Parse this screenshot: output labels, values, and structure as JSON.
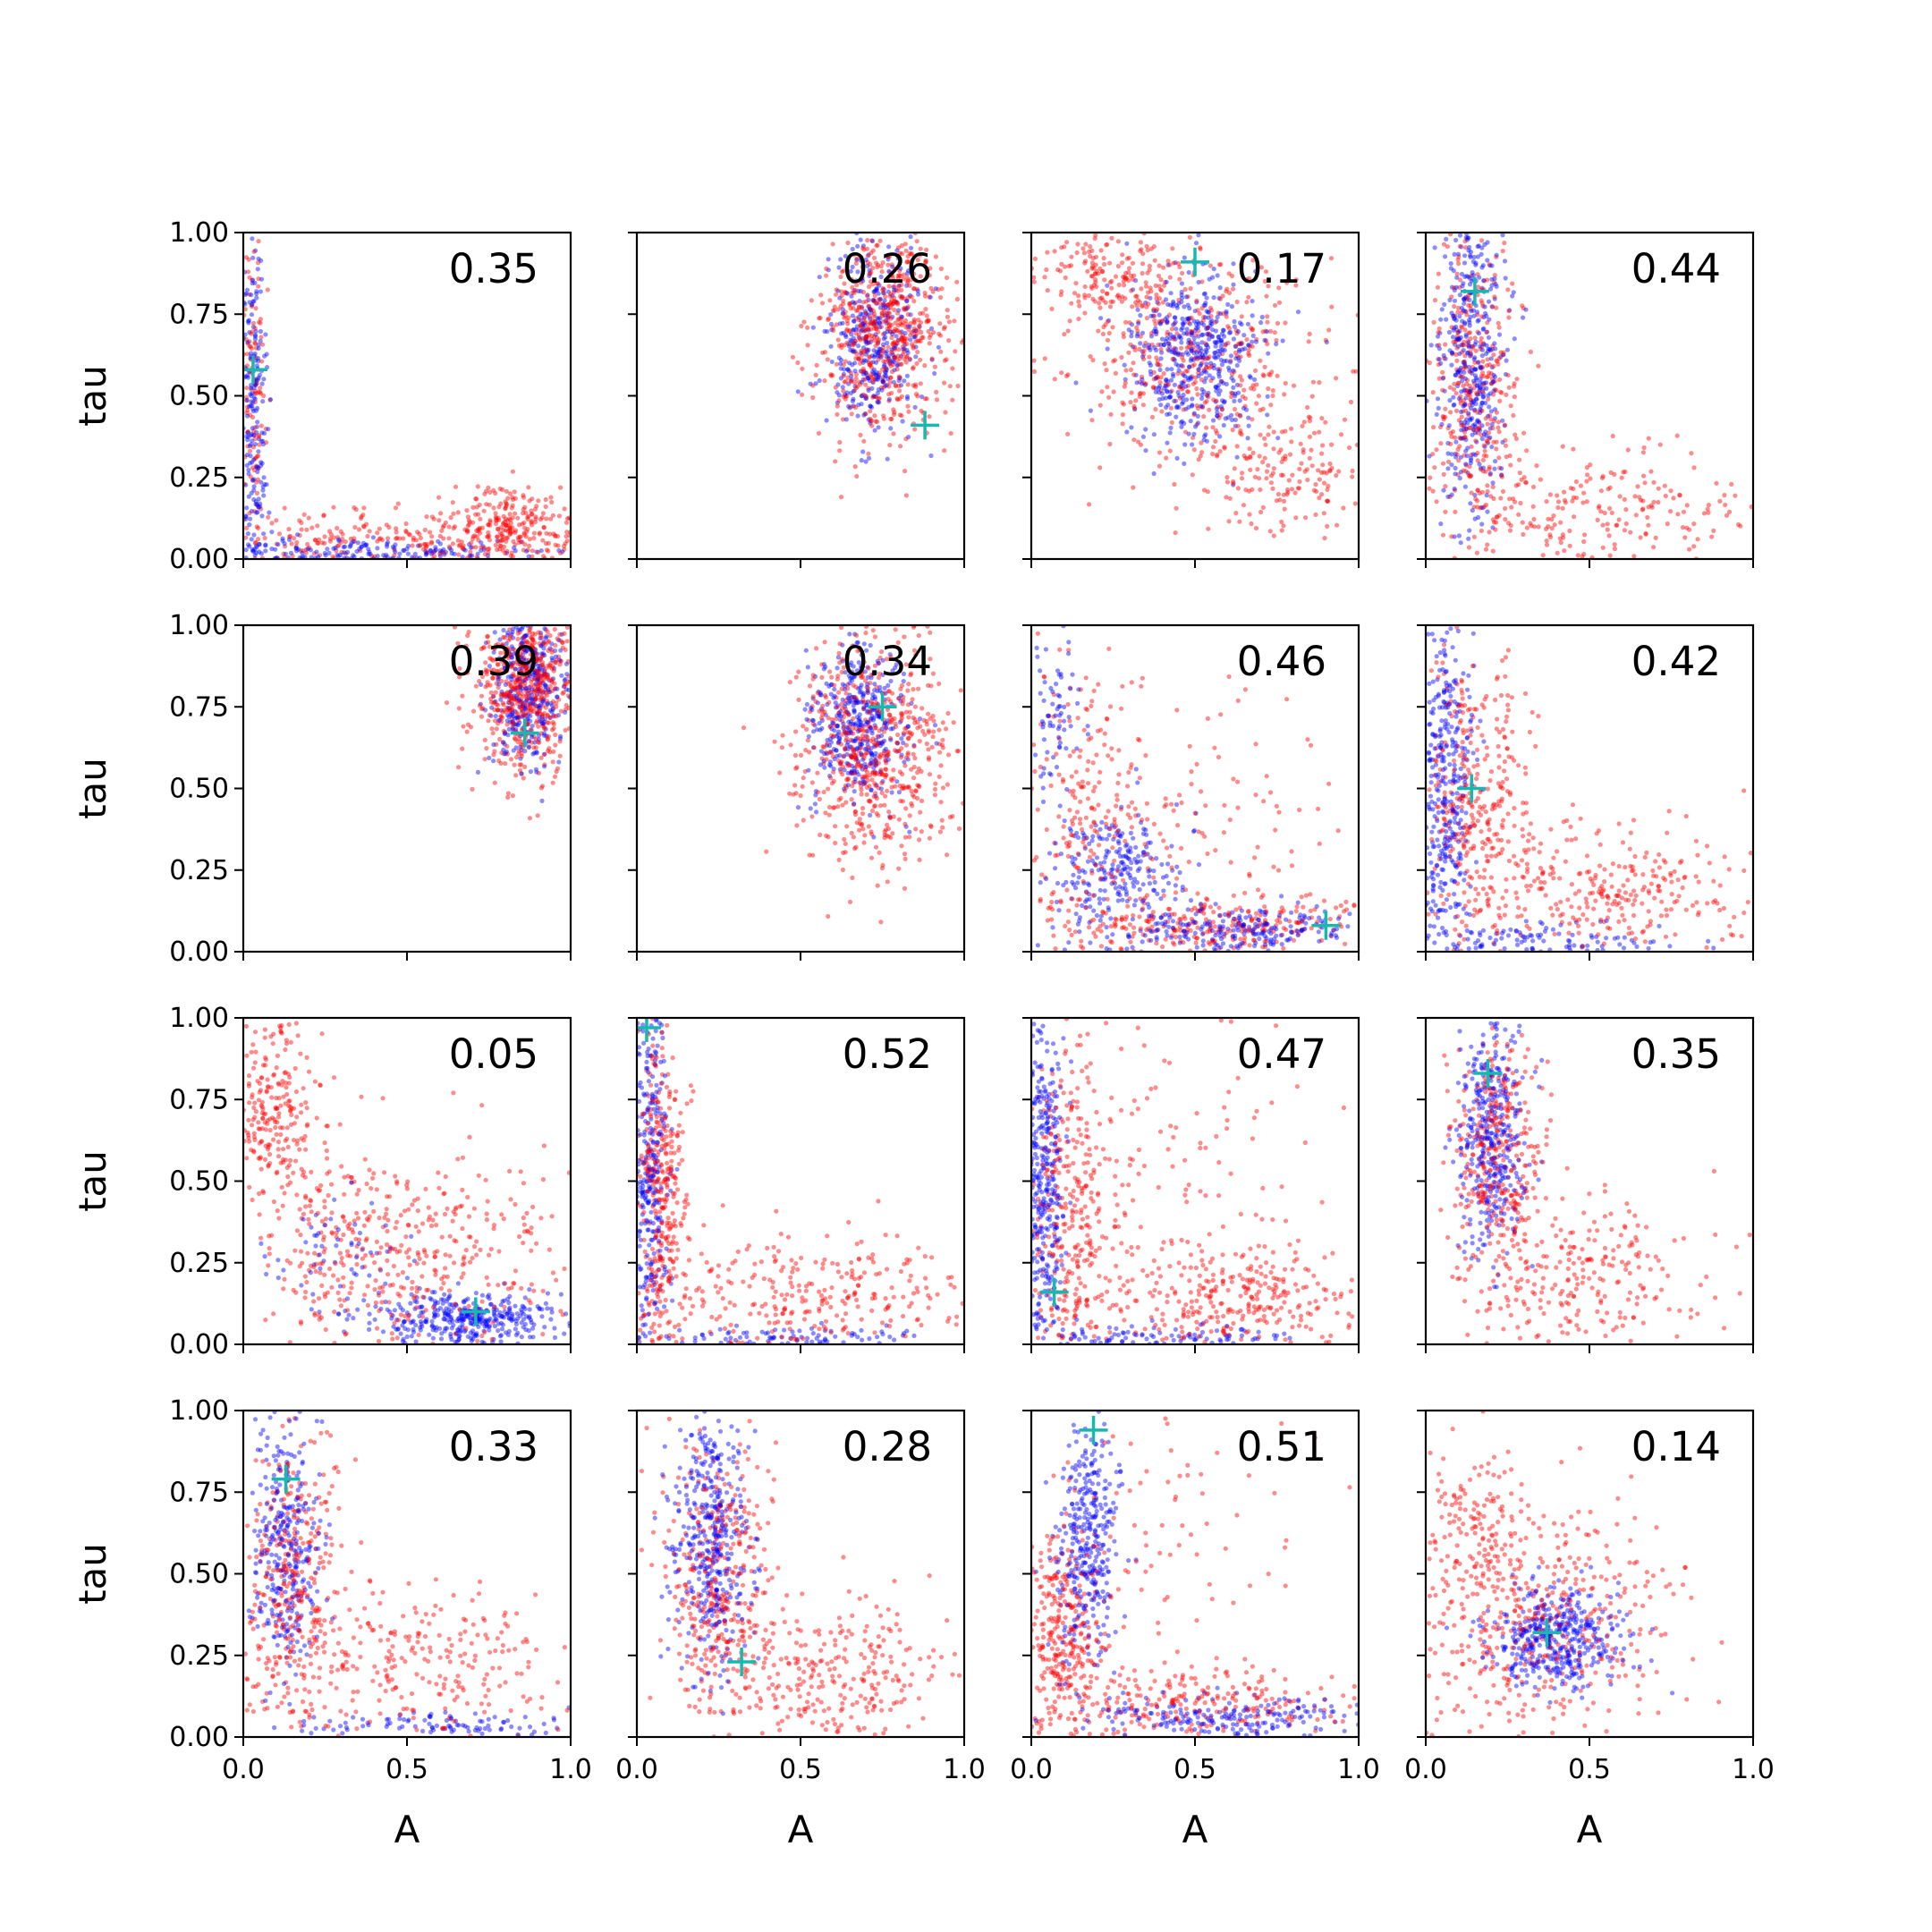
{
  "figure": {
    "grid": {
      "rows": 4,
      "cols": 4
    },
    "x_label": "A",
    "y_label": "tau",
    "series_colors": {
      "red": "#ff0000",
      "blue": "#0000ff",
      "marker": "#17b8b0"
    }
  },
  "chart_data": [
    {
      "type": "scatter",
      "row": 0,
      "col": 0,
      "value_label": "0.35",
      "xlim": [
        0,
        1
      ],
      "ylim": [
        0,
        1
      ],
      "xticks": [
        "0.0",
        "0.5",
        "1.0"
      ],
      "yticks": [
        "0.00",
        "0.25",
        "0.50",
        "0.75",
        "1.00"
      ],
      "marker": [
        0.03,
        0.58
      ],
      "red": {
        "clusters": [
          {
            "cx": 0.03,
            "cy": 0.55,
            "sx": 0.02,
            "sy": 0.25,
            "n": 120
          },
          {
            "cx": 0.4,
            "cy": 0.06,
            "sx": 0.3,
            "sy": 0.05,
            "n": 250
          },
          {
            "cx": 0.82,
            "cy": 0.1,
            "sx": 0.1,
            "sy": 0.06,
            "n": 250
          }
        ]
      },
      "blue": {
        "clusters": [
          {
            "cx": 0.03,
            "cy": 0.45,
            "sx": 0.02,
            "sy": 0.3,
            "n": 220
          },
          {
            "cx": 0.35,
            "cy": 0.02,
            "sx": 0.3,
            "sy": 0.02,
            "n": 220
          }
        ]
      }
    },
    {
      "type": "scatter",
      "row": 0,
      "col": 1,
      "value_label": "0.26",
      "xlim": [
        0,
        1
      ],
      "ylim": [
        0,
        1
      ],
      "xticks": [
        "0.0",
        "0.5",
        "1.0"
      ],
      "yticks": [
        "0.00",
        "0.25",
        "0.50",
        "0.75",
        "1.00"
      ],
      "marker": [
        0.88,
        0.41
      ],
      "red": {
        "clusters": [
          {
            "cx": 0.75,
            "cy": 0.7,
            "sx": 0.1,
            "sy": 0.16,
            "n": 650
          }
        ]
      },
      "blue": {
        "clusters": [
          {
            "cx": 0.72,
            "cy": 0.68,
            "sx": 0.07,
            "sy": 0.14,
            "n": 380
          }
        ]
      }
    },
    {
      "type": "scatter",
      "row": 0,
      "col": 2,
      "value_label": "0.17",
      "xlim": [
        0,
        1
      ],
      "ylim": [
        0,
        1
      ],
      "xticks": [
        "0.0",
        "0.5",
        "1.0"
      ],
      "yticks": [
        "0.00",
        "0.25",
        "0.50",
        "0.75",
        "1.00"
      ],
      "marker": [
        0.5,
        0.91
      ],
      "red": {
        "clusters": [
          {
            "cx": 0.5,
            "cy": 0.6,
            "sx": 0.2,
            "sy": 0.17,
            "n": 420
          },
          {
            "cx": 0.25,
            "cy": 0.85,
            "sx": 0.12,
            "sy": 0.08,
            "n": 180
          },
          {
            "cx": 0.8,
            "cy": 0.25,
            "sx": 0.12,
            "sy": 0.1,
            "n": 150
          }
        ]
      },
      "blue": {
        "clusters": [
          {
            "cx": 0.5,
            "cy": 0.63,
            "sx": 0.1,
            "sy": 0.13,
            "n": 480
          }
        ]
      }
    },
    {
      "type": "scatter",
      "row": 0,
      "col": 3,
      "value_label": "0.44",
      "xlim": [
        0,
        1
      ],
      "ylim": [
        0,
        1
      ],
      "xticks": [
        "0.0",
        "0.5",
        "1.0"
      ],
      "yticks": [
        "0.00",
        "0.25",
        "0.50",
        "0.75",
        "1.00"
      ],
      "marker": [
        0.15,
        0.82
      ],
      "red": {
        "clusters": [
          {
            "cx": 0.15,
            "cy": 0.55,
            "sx": 0.07,
            "sy": 0.25,
            "n": 380
          },
          {
            "cx": 0.55,
            "cy": 0.15,
            "sx": 0.22,
            "sy": 0.1,
            "n": 220
          }
        ]
      },
      "blue": {
        "clusters": [
          {
            "cx": 0.14,
            "cy": 0.62,
            "sx": 0.05,
            "sy": 0.25,
            "n": 420
          }
        ]
      }
    },
    {
      "type": "scatter",
      "row": 1,
      "col": 0,
      "value_label": "0.39",
      "xlim": [
        0,
        1
      ],
      "ylim": [
        0,
        1
      ],
      "xticks": [
        "0.0",
        "0.5",
        "1.0"
      ],
      "yticks": [
        "0.00",
        "0.25",
        "0.50",
        "0.75",
        "1.00"
      ],
      "marker": [
        0.86,
        0.67
      ],
      "red": {
        "clusters": [
          {
            "cx": 0.86,
            "cy": 0.82,
            "sx": 0.08,
            "sy": 0.14,
            "n": 650
          }
        ]
      },
      "blue": {
        "clusters": [
          {
            "cx": 0.87,
            "cy": 0.82,
            "sx": 0.06,
            "sy": 0.12,
            "n": 380
          }
        ]
      }
    },
    {
      "type": "scatter",
      "row": 1,
      "col": 1,
      "value_label": "0.34",
      "xlim": [
        0,
        1
      ],
      "ylim": [
        0,
        1
      ],
      "xticks": [
        "0.0",
        "0.5",
        "1.0"
      ],
      "yticks": [
        "0.00",
        "0.25",
        "0.50",
        "0.75",
        "1.00"
      ],
      "marker": [
        0.75,
        0.75
      ],
      "red": {
        "clusters": [
          {
            "cx": 0.72,
            "cy": 0.62,
            "sx": 0.12,
            "sy": 0.17,
            "n": 620
          }
        ]
      },
      "blue": {
        "clusters": [
          {
            "cx": 0.68,
            "cy": 0.7,
            "sx": 0.07,
            "sy": 0.12,
            "n": 400
          }
        ]
      }
    },
    {
      "type": "scatter",
      "row": 1,
      "col": 2,
      "value_label": "0.46",
      "xlim": [
        0,
        1
      ],
      "ylim": [
        0,
        1
      ],
      "xticks": [
        "0.0",
        "0.5",
        "1.0"
      ],
      "yticks": [
        "0.00",
        "0.25",
        "0.50",
        "0.75",
        "1.00"
      ],
      "marker": [
        0.9,
        0.08
      ],
      "red": {
        "clusters": [
          {
            "cx": 0.5,
            "cy": 0.08,
            "sx": 0.3,
            "sy": 0.05,
            "n": 320
          },
          {
            "cx": 0.15,
            "cy": 0.45,
            "sx": 0.1,
            "sy": 0.22,
            "n": 180
          },
          {
            "cx": 0.5,
            "cy": 0.4,
            "sx": 0.25,
            "sy": 0.2,
            "n": 120
          }
        ]
      },
      "blue": {
        "clusters": [
          {
            "cx": 0.25,
            "cy": 0.25,
            "sx": 0.1,
            "sy": 0.1,
            "n": 240
          },
          {
            "cx": 0.65,
            "cy": 0.07,
            "sx": 0.2,
            "sy": 0.04,
            "n": 220
          },
          {
            "cx": 0.07,
            "cy": 0.7,
            "sx": 0.04,
            "sy": 0.2,
            "n": 80
          }
        ]
      }
    },
    {
      "type": "scatter",
      "row": 1,
      "col": 3,
      "value_label": "0.42",
      "xlim": [
        0,
        1
      ],
      "ylim": [
        0,
        1
      ],
      "xticks": [
        "0.0",
        "0.5",
        "1.0"
      ],
      "yticks": [
        "0.00",
        "0.25",
        "0.50",
        "0.75",
        "1.00"
      ],
      "marker": [
        0.14,
        0.5
      ],
      "red": {
        "clusters": [
          {
            "cx": 0.15,
            "cy": 0.45,
            "sx": 0.08,
            "sy": 0.22,
            "n": 320
          },
          {
            "cx": 0.55,
            "cy": 0.2,
            "sx": 0.22,
            "sy": 0.1,
            "n": 300
          }
        ]
      },
      "blue": {
        "clusters": [
          {
            "cx": 0.06,
            "cy": 0.5,
            "sx": 0.04,
            "sy": 0.28,
            "n": 380
          },
          {
            "cx": 0.35,
            "cy": 0.03,
            "sx": 0.2,
            "sy": 0.03,
            "n": 120
          }
        ]
      }
    },
    {
      "type": "scatter",
      "row": 2,
      "col": 0,
      "value_label": "0.05",
      "xlim": [
        0,
        1
      ],
      "ylim": [
        0,
        1
      ],
      "xticks": [
        "0.0",
        "0.5",
        "1.0"
      ],
      "yticks": [
        "0.00",
        "0.25",
        "0.50",
        "0.75",
        "1.00"
      ],
      "marker": [
        0.71,
        0.1
      ],
      "red": {
        "clusters": [
          {
            "cx": 0.1,
            "cy": 0.7,
            "sx": 0.07,
            "sy": 0.15,
            "n": 250
          },
          {
            "cx": 0.35,
            "cy": 0.3,
            "sx": 0.15,
            "sy": 0.15,
            "n": 250
          },
          {
            "cx": 0.7,
            "cy": 0.25,
            "sx": 0.2,
            "sy": 0.2,
            "n": 200
          }
        ]
      },
      "blue": {
        "clusters": [
          {
            "cx": 0.68,
            "cy": 0.08,
            "sx": 0.15,
            "sy": 0.04,
            "n": 380
          },
          {
            "cx": 0.3,
            "cy": 0.3,
            "sx": 0.12,
            "sy": 0.1,
            "n": 60
          }
        ]
      }
    },
    {
      "type": "scatter",
      "row": 2,
      "col": 1,
      "value_label": "0.52",
      "xlim": [
        0,
        1
      ],
      "ylim": [
        0,
        1
      ],
      "xticks": [
        "0.0",
        "0.5",
        "1.0"
      ],
      "yticks": [
        "0.00",
        "0.25",
        "0.50",
        "0.75",
        "1.00"
      ],
      "marker": [
        0.03,
        0.97
      ],
      "red": {
        "clusters": [
          {
            "cx": 0.08,
            "cy": 0.45,
            "sx": 0.04,
            "sy": 0.25,
            "n": 350
          },
          {
            "cx": 0.55,
            "cy": 0.15,
            "sx": 0.25,
            "sy": 0.1,
            "n": 300
          }
        ]
      },
      "blue": {
        "clusters": [
          {
            "cx": 0.04,
            "cy": 0.5,
            "sx": 0.03,
            "sy": 0.28,
            "n": 320
          },
          {
            "cx": 0.5,
            "cy": 0.02,
            "sx": 0.25,
            "sy": 0.02,
            "n": 100
          }
        ]
      }
    },
    {
      "type": "scatter",
      "row": 2,
      "col": 2,
      "value_label": "0.47",
      "xlim": [
        0,
        1
      ],
      "ylim": [
        0,
        1
      ],
      "xticks": [
        "0.0",
        "0.5",
        "1.0"
      ],
      "yticks": [
        "0.00",
        "0.25",
        "0.50",
        "0.75",
        "1.00"
      ],
      "marker": [
        0.07,
        0.16
      ],
      "red": {
        "clusters": [
          {
            "cx": 0.12,
            "cy": 0.4,
            "sx": 0.06,
            "sy": 0.25,
            "n": 300
          },
          {
            "cx": 0.6,
            "cy": 0.15,
            "sx": 0.22,
            "sy": 0.08,
            "n": 320
          },
          {
            "cx": 0.4,
            "cy": 0.5,
            "sx": 0.2,
            "sy": 0.25,
            "n": 120
          }
        ]
      },
      "blue": {
        "clusters": [
          {
            "cx": 0.04,
            "cy": 0.5,
            "sx": 0.03,
            "sy": 0.28,
            "n": 380
          },
          {
            "cx": 0.35,
            "cy": 0.02,
            "sx": 0.25,
            "sy": 0.02,
            "n": 120
          }
        ]
      }
    },
    {
      "type": "scatter",
      "row": 2,
      "col": 3,
      "value_label": "0.35",
      "xlim": [
        0,
        1
      ],
      "ylim": [
        0,
        1
      ],
      "xticks": [
        "0.0",
        "0.5",
        "1.0"
      ],
      "yticks": [
        "0.00",
        "0.25",
        "0.50",
        "0.75",
        "1.00"
      ],
      "marker": [
        0.19,
        0.83
      ],
      "red": {
        "clusters": [
          {
            "cx": 0.22,
            "cy": 0.6,
            "sx": 0.07,
            "sy": 0.2,
            "n": 350
          },
          {
            "cx": 0.5,
            "cy": 0.2,
            "sx": 0.2,
            "sy": 0.12,
            "n": 250
          }
        ]
      },
      "blue": {
        "clusters": [
          {
            "cx": 0.2,
            "cy": 0.65,
            "sx": 0.05,
            "sy": 0.18,
            "n": 380
          }
        ]
      }
    },
    {
      "type": "scatter",
      "row": 3,
      "col": 0,
      "value_label": "0.33",
      "xlim": [
        0,
        1
      ],
      "ylim": [
        0,
        1
      ],
      "xticks": [
        "0.0",
        "0.5",
        "1.0"
      ],
      "yticks": [
        "0.00",
        "0.25",
        "0.50",
        "0.75",
        "1.00"
      ],
      "marker": [
        0.13,
        0.79
      ],
      "red": {
        "clusters": [
          {
            "cx": 0.15,
            "cy": 0.5,
            "sx": 0.08,
            "sy": 0.22,
            "n": 350
          },
          {
            "cx": 0.55,
            "cy": 0.2,
            "sx": 0.22,
            "sy": 0.12,
            "n": 250
          }
        ]
      },
      "blue": {
        "clusters": [
          {
            "cx": 0.13,
            "cy": 0.6,
            "sx": 0.05,
            "sy": 0.22,
            "n": 320
          },
          {
            "cx": 0.6,
            "cy": 0.04,
            "sx": 0.2,
            "sy": 0.02,
            "n": 100
          }
        ]
      }
    },
    {
      "type": "scatter",
      "row": 3,
      "col": 1,
      "value_label": "0.28",
      "xlim": [
        0,
        1
      ],
      "ylim": [
        0,
        1
      ],
      "xticks": [
        "0.0",
        "0.5",
        "1.0"
      ],
      "yticks": [
        "0.00",
        "0.25",
        "0.50",
        "0.75",
        "1.00"
      ],
      "marker": [
        0.32,
        0.23
      ],
      "red": {
        "clusters": [
          {
            "cx": 0.25,
            "cy": 0.5,
            "sx": 0.08,
            "sy": 0.2,
            "n": 350
          },
          {
            "cx": 0.6,
            "cy": 0.2,
            "sx": 0.2,
            "sy": 0.12,
            "n": 300
          }
        ]
      },
      "blue": {
        "clusters": [
          {
            "cx": 0.22,
            "cy": 0.6,
            "sx": 0.06,
            "sy": 0.22,
            "n": 420
          }
        ]
      }
    },
    {
      "type": "scatter",
      "row": 3,
      "col": 2,
      "value_label": "0.51",
      "xlim": [
        0,
        1
      ],
      "ylim": [
        0,
        1
      ],
      "xticks": [
        "0.0",
        "0.5",
        "1.0"
      ],
      "yticks": [
        "0.00",
        "0.25",
        "0.50",
        "0.75",
        "1.00"
      ],
      "marker": [
        0.19,
        0.94
      ],
      "red": {
        "clusters": [
          {
            "cx": 0.1,
            "cy": 0.3,
            "sx": 0.06,
            "sy": 0.15,
            "n": 300
          },
          {
            "cx": 0.5,
            "cy": 0.1,
            "sx": 0.25,
            "sy": 0.06,
            "n": 250
          },
          {
            "cx": 0.4,
            "cy": 0.6,
            "sx": 0.25,
            "sy": 0.25,
            "n": 100
          }
        ]
      },
      "blue": {
        "clusters": [
          {
            "cx": 0.17,
            "cy": 0.6,
            "sx": 0.05,
            "sy": 0.2,
            "n": 350
          },
          {
            "cx": 0.6,
            "cy": 0.06,
            "sx": 0.22,
            "sy": 0.03,
            "n": 200
          }
        ]
      }
    },
    {
      "type": "scatter",
      "row": 3,
      "col": 3,
      "value_label": "0.14",
      "xlim": [
        0,
        1
      ],
      "ylim": [
        0,
        1
      ],
      "xticks": [
        "0.0",
        "0.5",
        "1.0"
      ],
      "yticks": [
        "0.00",
        "0.25",
        "0.50",
        "0.75",
        "1.00"
      ],
      "marker": [
        0.37,
        0.32
      ],
      "red": {
        "clusters": [
          {
            "cx": 0.35,
            "cy": 0.35,
            "sx": 0.2,
            "sy": 0.17,
            "n": 450
          },
          {
            "cx": 0.15,
            "cy": 0.65,
            "sx": 0.1,
            "sy": 0.12,
            "n": 150
          }
        ]
      },
      "blue": {
        "clusters": [
          {
            "cx": 0.4,
            "cy": 0.3,
            "sx": 0.1,
            "sy": 0.08,
            "n": 420
          }
        ]
      }
    }
  ]
}
